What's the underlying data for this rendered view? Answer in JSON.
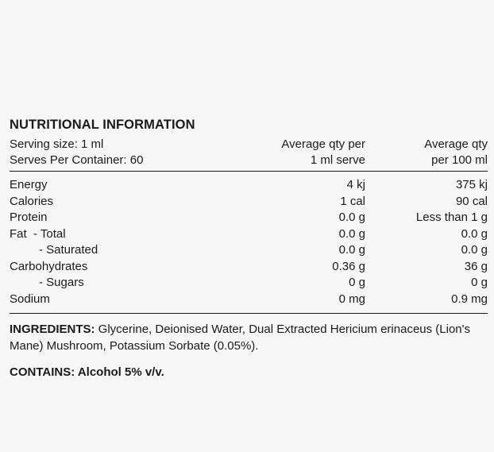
{
  "panel": {
    "title": "NUTRITIONAL INFORMATION",
    "header": {
      "serving_size": "Serving size: 1 ml",
      "serves_per_container": "Serves Per Container: 60",
      "col2_line1": "Average qty per",
      "col2_line2": "1 ml serve",
      "col3_line1": "Average qty",
      "col3_line2": "per 100 ml"
    },
    "rows": [
      {
        "label": "Energy",
        "per_serve": "4 kj",
        "per_100": "375 kj"
      },
      {
        "label": "Calories",
        "per_serve": "1 cal",
        "per_100": "90 cal"
      },
      {
        "label": "Protein",
        "per_serve": "0.0 g",
        "per_100": "Less than 1 g"
      },
      {
        "label": "Fat  - Total",
        "per_serve": "0.0 g",
        "per_100": "0.0 g"
      },
      {
        "label": "- Saturated",
        "per_serve": "0.0 g",
        "per_100": "0.0 g"
      },
      {
        "label": "Carbohydrates",
        "per_serve": "0.36 g",
        "per_100": "36 g"
      },
      {
        "label": "- Sugars",
        "per_serve": "0 g",
        "per_100": "0 g"
      },
      {
        "label": "Sodium",
        "per_serve": "0 mg",
        "per_100": "0.9 mg"
      }
    ],
    "ingredients_label": "INGREDIENTS:",
    "ingredients_text": " Glycerine, Deionised Water, Dual Extracted Hericium erinaceus (Lion's Mane) Mushroom, Potassium Sorbate (0.05%).",
    "contains_text": "CONTAINS: Alcohol 5% v/v."
  }
}
